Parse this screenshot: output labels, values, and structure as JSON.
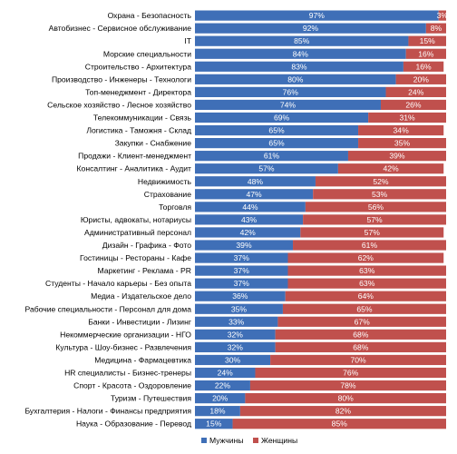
{
  "chart_data": {
    "type": "bar",
    "orientation": "horizontal",
    "stacked": true,
    "stack_mode": "percent",
    "categories": [
      "Охрана - Безопасность",
      "Автобизнес - Сервисное обслуживание",
      "IT",
      "Морские специальности",
      "Строительство - Архитектура",
      "Производство - Инженеры - Технологи",
      "Топ-менеджмент - Директора",
      "Сельское хозяйство - Лесное хозяйство",
      "Телекоммуникации - Связь",
      "Логистика - Таможня - Склад",
      "Закупки - Снабжение",
      "Продажи - Клиент-менеджмент",
      "Консалтинг - Аналитика - Аудит",
      "Недвижимость",
      "Страхование",
      "Торговля",
      "Юристы, адвокаты, нотариусы",
      "Административный персонал",
      "Дизайн - Графика - Фото",
      "Гостиницы - Рестораны - Кафе",
      "Маркетинг - Реклама - PR",
      "Студенты - Начало карьеры - Без опыта",
      "Медиа - Издательское дело",
      "Рабочие специальности - Персонал для дома",
      "Банки - Инвестиции - Лизинг",
      "Некоммерческие организации - НГО",
      "Культура - Шоу-бизнес - Развлечения",
      "Медицина - Фармацевтика",
      "HR специалисты - Бизнес-тренеры",
      "Спорт - Красота - Оздоровление",
      "Туризм - Путешествия",
      "Бухгалтерия - Налоги - Финансы предприятия",
      "Наука - Образование - Перевод"
    ],
    "series": [
      {
        "name": "Мужчины",
        "color": "#3F6FB7",
        "values": [
          97,
          92,
          85,
          84,
          83,
          80,
          76,
          74,
          69,
          65,
          65,
          61,
          57,
          48,
          47,
          44,
          43,
          42,
          39,
          37,
          37,
          37,
          36,
          35,
          33,
          32,
          32,
          30,
          24,
          22,
          20,
          18,
          15
        ]
      },
      {
        "name": "Женщины",
        "color": "#C0504D",
        "values": [
          3,
          8,
          15,
          16,
          16,
          20,
          24,
          26,
          31,
          34,
          35,
          39,
          42,
          52,
          53,
          56,
          57,
          57,
          61,
          62,
          63,
          63,
          64,
          65,
          67,
          68,
          68,
          70,
          76,
          78,
          80,
          82,
          85
        ]
      }
    ],
    "value_suffix": "%",
    "xlim": [
      0,
      100
    ],
    "grid": false,
    "legend_position": "bottom"
  }
}
